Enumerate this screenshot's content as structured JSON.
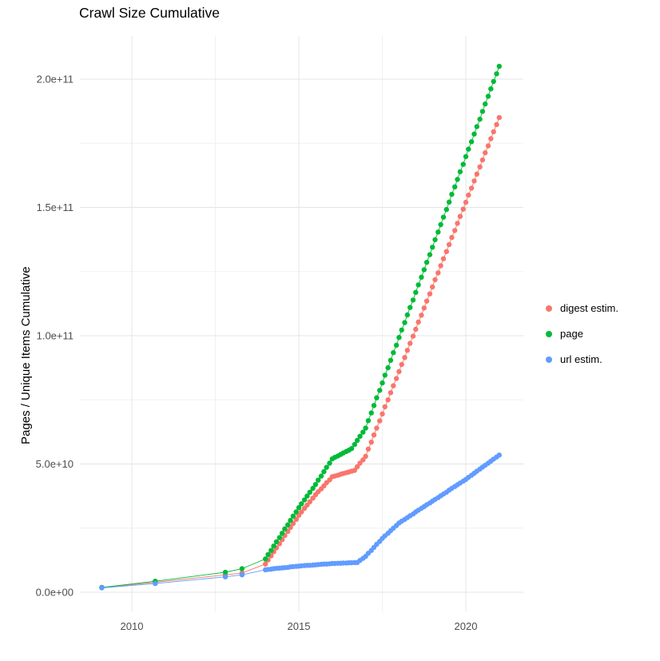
{
  "page": {
    "title": "Crawl Size Cumulative"
  },
  "chart_data": {
    "type": "scatter",
    "title": "Crawl Size Cumulative",
    "xlabel": "",
    "ylabel": "Pages / Unique Items Cumulative",
    "legend_position": "right",
    "grid": true,
    "value_unit": "1e9 (values are billions of pages / unique items)",
    "xlim": [
      2008.4,
      2021.7
    ],
    "ylim_e9": [
      -7.5,
      217
    ],
    "x_ticks": [
      2010,
      2015,
      2020
    ],
    "x_tick_labels": [
      "2010",
      "2015",
      "2020"
    ],
    "x_minor_ticks": [
      2012.5,
      2017.5
    ],
    "y_ticks_e9": [
      0,
      50,
      100,
      150,
      200
    ],
    "y_tick_labels": [
      "0.0e+00",
      "5.0e+10",
      "1.0e+11",
      "1.5e+11",
      "2.0e+11"
    ],
    "y_minor_ticks_e9": [
      25,
      75,
      125,
      175
    ],
    "x": [
      2009.1,
      2010.7,
      2012.8,
      2013.3,
      2014.0,
      2014.08,
      2014.17,
      2014.25,
      2014.33,
      2014.42,
      2014.5,
      2014.58,
      2014.67,
      2014.75,
      2014.83,
      2014.92,
      2015.0,
      2015.08,
      2015.17,
      2015.25,
      2015.33,
      2015.42,
      2015.5,
      2015.58,
      2015.67,
      2015.75,
      2015.83,
      2015.92,
      2016.0,
      2016.08,
      2016.17,
      2016.25,
      2016.33,
      2016.42,
      2016.5,
      2016.58,
      2016.67,
      2016.75,
      2016.83,
      2016.92,
      2017.0,
      2017.08,
      2017.17,
      2017.25,
      2017.33,
      2017.42,
      2017.5,
      2017.58,
      2017.67,
      2017.75,
      2017.83,
      2017.92,
      2018.0,
      2018.08,
      2018.17,
      2018.25,
      2018.33,
      2018.42,
      2018.5,
      2018.58,
      2018.67,
      2018.75,
      2018.83,
      2018.92,
      2019.0,
      2019.08,
      2019.17,
      2019.25,
      2019.33,
      2019.42,
      2019.5,
      2019.58,
      2019.67,
      2019.75,
      2019.83,
      2019.92,
      2020.0,
      2020.08,
      2020.17,
      2020.25,
      2020.33,
      2020.42,
      2020.5,
      2020.58,
      2020.67,
      2020.75,
      2020.83,
      2020.92,
      2021.0
    ],
    "series": [
      {
        "name": "digest estim.",
        "color": "#F8766D",
        "values_e9": [
          1.8,
          3.9,
          6.8,
          7.5,
          11.0,
          12.6,
          14.2,
          15.8,
          17.3,
          18.9,
          20.5,
          22.1,
          23.7,
          25.3,
          26.8,
          28.4,
          30.0,
          31.3,
          32.7,
          34.0,
          35.3,
          36.7,
          38.0,
          39.2,
          40.3,
          41.5,
          42.7,
          43.8,
          45.0,
          45.3,
          45.6,
          46.0,
          46.3,
          46.6,
          46.9,
          47.2,
          47.5,
          48.9,
          50.3,
          51.6,
          53.0,
          55.8,
          58.5,
          61.3,
          64.0,
          66.8,
          69.5,
          72.3,
          75.0,
          77.8,
          80.5,
          83.3,
          86.0,
          88.8,
          91.5,
          94.3,
          97.0,
          99.8,
          102.5,
          105.3,
          108.0,
          110.8,
          113.5,
          116.3,
          119.0,
          121.8,
          124.5,
          127.3,
          130.0,
          132.8,
          135.5,
          138.3,
          141.0,
          143.8,
          146.5,
          149.3,
          152.0,
          154.8,
          157.5,
          160.3,
          163.0,
          165.8,
          168.5,
          171.3,
          174.0,
          176.8,
          179.5,
          182.3,
          185.0
        ]
      },
      {
        "name": "page",
        "color": "#00BA38",
        "values_e9": [
          1.9,
          4.3,
          7.8,
          9.2,
          13.0,
          14.7,
          16.3,
          18.0,
          19.7,
          21.3,
          23.0,
          24.7,
          26.3,
          28.0,
          29.7,
          31.3,
          33.0,
          34.5,
          36.0,
          37.5,
          39.0,
          40.5,
          42.0,
          43.7,
          45.3,
          47.0,
          48.7,
          50.3,
          52.0,
          52.6,
          53.1,
          53.7,
          54.3,
          54.9,
          55.4,
          56.0,
          57.6,
          59.2,
          60.8,
          62.4,
          64.0,
          66.9,
          69.9,
          72.8,
          75.8,
          78.7,
          81.6,
          84.6,
          87.5,
          90.4,
          93.4,
          96.3,
          99.3,
          102.2,
          105.1,
          108.1,
          111.0,
          113.9,
          116.9,
          119.8,
          122.8,
          125.7,
          128.6,
          131.6,
          134.5,
          137.4,
          140.4,
          143.3,
          146.2,
          149.2,
          152.1,
          155.1,
          158.0,
          160.9,
          163.9,
          166.8,
          169.8,
          172.7,
          175.6,
          178.6,
          181.5,
          184.4,
          187.4,
          190.3,
          193.3,
          196.2,
          199.1,
          202.1,
          205.0
        ]
      },
      {
        "name": "url estim.",
        "color": "#619CFF",
        "values_e9": [
          1.7,
          3.4,
          6.0,
          6.8,
          8.8,
          8.9,
          9.0,
          9.2,
          9.3,
          9.4,
          9.5,
          9.6,
          9.7,
          9.9,
          10.0,
          10.1,
          10.2,
          10.3,
          10.4,
          10.5,
          10.5,
          10.6,
          10.7,
          10.8,
          10.9,
          11.0,
          11.0,
          11.1,
          11.2,
          11.2,
          11.3,
          11.3,
          11.4,
          11.4,
          11.5,
          11.5,
          11.6,
          11.6,
          12.4,
          13.2,
          14.0,
          15.2,
          16.3,
          17.5,
          18.7,
          19.8,
          21.0,
          22.0,
          23.0,
          24.0,
          25.0,
          26.0,
          27.0,
          27.7,
          28.4,
          29.1,
          29.8,
          30.5,
          31.3,
          32.0,
          32.7,
          33.4,
          34.1,
          34.8,
          35.5,
          36.2,
          36.9,
          37.6,
          38.3,
          39.0,
          39.8,
          40.5,
          41.2,
          41.9,
          42.6,
          43.3,
          44.0,
          44.8,
          45.6,
          46.4,
          47.2,
          48.0,
          48.8,
          49.5,
          50.3,
          51.1,
          51.9,
          52.7,
          53.5
        ]
      }
    ]
  }
}
